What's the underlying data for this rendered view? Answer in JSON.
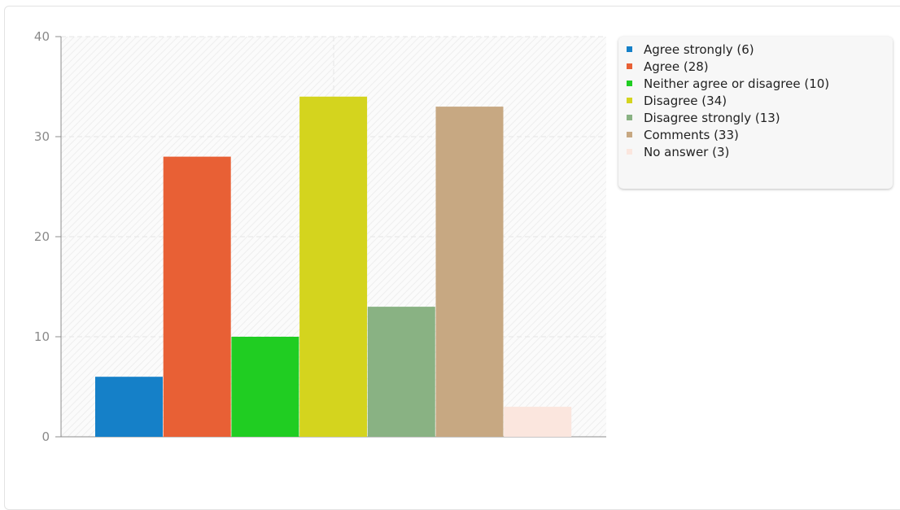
{
  "chart_data": {
    "type": "bar",
    "categories": [
      "Agree strongly (6)",
      "Agree (28)",
      "Neither agree or disagree (10)",
      "Disagree (34)",
      "Disagree strongly (13)",
      "Comments (33)",
      "No answer (3)"
    ],
    "values": [
      6,
      28,
      10,
      34,
      13,
      33,
      3
    ],
    "colors": [
      "#1580c8",
      "#e86035",
      "#20cd22",
      "#d4d41e",
      "#89b283",
      "#c7a882",
      "#fbe6de"
    ],
    "ylim": [
      0,
      40
    ],
    "yticks": [
      "0",
      "10",
      "20",
      "30",
      "40"
    ],
    "grid": true,
    "legend_position": "top-right",
    "title": "",
    "xlabel": "",
    "ylabel": ""
  }
}
